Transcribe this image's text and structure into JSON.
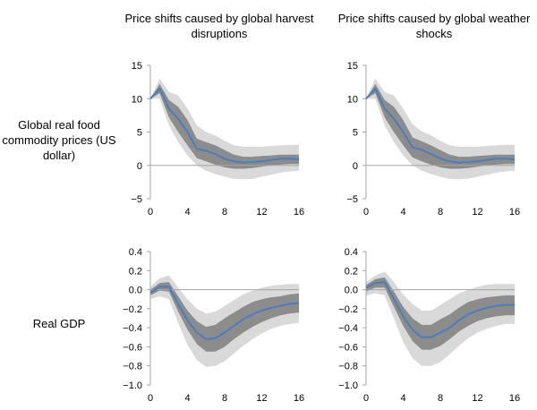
{
  "column_titles": [
    "Price shifts caused by global harvest disruptions",
    "Price shifts caused by global weather shocks"
  ],
  "row_labels": [
    "Global real food commodity prices (US dollar)",
    "Real GDP"
  ],
  "colors": {
    "line": "#4a7ebb",
    "band_outer": "#d9d9d9",
    "band_inner": "#8c8c8c",
    "zero_line": "#a6a6a6",
    "axis": "#a6a6a6"
  },
  "chart_data": [
    {
      "type": "area",
      "title": "Price shifts caused by global harvest disruptions",
      "ylabel": "Global real food commodity prices (US dollar)",
      "xlabel": "",
      "xlim": [
        0,
        16
      ],
      "ylim": [
        -5,
        15
      ],
      "xticks": [
        0,
        4,
        8,
        12,
        16
      ],
      "yticks": [
        15,
        10,
        5,
        0,
        -5
      ],
      "x": [
        0,
        1,
        2,
        3,
        4,
        5,
        6,
        7,
        8,
        9,
        10,
        11,
        12,
        13,
        14,
        15,
        16
      ],
      "series": [
        {
          "values": [
            10,
            11.5,
            8.5,
            7,
            5,
            2.5,
            2.2,
            1.7,
            1,
            0.6,
            0.4,
            0.5,
            0.6,
            0.8,
            1,
            1,
            0.9
          ]
        }
      ],
      "bands": {
        "inner_low": [
          10,
          10.8,
          7.2,
          5,
          3,
          1.1,
          0.6,
          0.1,
          -0.3,
          -0.5,
          -0.5,
          -0.4,
          -0.2,
          0,
          0.1,
          0.2,
          0.2
        ],
        "inner_high": [
          10,
          12.2,
          9.8,
          8.8,
          6.8,
          4,
          3.5,
          3,
          2.3,
          1.6,
          1.3,
          1.3,
          1.4,
          1.5,
          1.6,
          1.6,
          1.6
        ],
        "outer_low": [
          10,
          10,
          6,
          3.5,
          1.5,
          0,
          -0.8,
          -1.3,
          -1.7,
          -2,
          -2.1,
          -2,
          -1.7,
          -1.4,
          -1.1,
          -0.9,
          -0.8
        ],
        "outer_high": [
          10,
          13,
          11,
          10.5,
          8.5,
          6,
          5,
          4.5,
          3.7,
          3,
          2.8,
          2.8,
          2.8,
          2.9,
          3,
          3.1,
          3.1
        ]
      }
    },
    {
      "type": "area",
      "title": "Price shifts caused by global weather shocks",
      "ylabel": "Global real food commodity prices (US dollar)",
      "xlabel": "",
      "xlim": [
        0,
        16
      ],
      "ylim": [
        -5,
        15
      ],
      "xticks": [
        0,
        4,
        8,
        12,
        16
      ],
      "yticks": [
        15,
        10,
        5,
        0,
        -5
      ],
      "x": [
        0,
        1,
        2,
        3,
        4,
        5,
        6,
        7,
        8,
        9,
        10,
        11,
        12,
        13,
        14,
        15,
        16
      ],
      "series": [
        {
          "values": [
            10,
            11.5,
            8.5,
            7,
            5,
            2.7,
            2.3,
            1.7,
            1,
            0.6,
            0.4,
            0.5,
            0.6,
            0.8,
            1,
            1,
            0.9
          ]
        }
      ],
      "bands": {
        "inner_low": [
          10,
          10.8,
          7.2,
          5,
          3,
          1.2,
          0.6,
          0.1,
          -0.3,
          -0.5,
          -0.5,
          -0.4,
          -0.2,
          0,
          0.1,
          0.2,
          0.2
        ],
        "inner_high": [
          10,
          12.2,
          9.8,
          8.8,
          6.8,
          4.2,
          3.6,
          3,
          2.3,
          1.6,
          1.3,
          1.3,
          1.4,
          1.5,
          1.6,
          1.6,
          1.6
        ],
        "outer_low": [
          10,
          10,
          6,
          3.5,
          1.5,
          0,
          -0.8,
          -1.3,
          -1.7,
          -2,
          -2.1,
          -2,
          -1.7,
          -1.4,
          -1.1,
          -0.9,
          -0.8
        ],
        "outer_high": [
          10,
          13,
          11,
          10.5,
          8.5,
          6.2,
          5.1,
          4.5,
          3.7,
          3,
          2.8,
          2.8,
          2.8,
          2.9,
          3,
          3.1,
          3.1
        ]
      }
    },
    {
      "type": "area",
      "title": "Price shifts caused by global harvest disruptions",
      "ylabel": "Real GDP",
      "xlabel": "",
      "xlim": [
        0,
        16
      ],
      "ylim": [
        -1.0,
        0.4
      ],
      "xticks": [
        0,
        4,
        8,
        12,
        16
      ],
      "yticks": [
        0.4,
        0.2,
        0.0,
        -0.2,
        -0.4,
        -0.6,
        -0.8,
        -1.0
      ],
      "x": [
        0,
        1,
        2,
        3,
        4,
        5,
        6,
        7,
        8,
        9,
        10,
        11,
        12,
        13,
        14,
        15,
        16
      ],
      "series": [
        {
          "values": [
            -0.03,
            0.03,
            0.03,
            -0.15,
            -0.32,
            -0.45,
            -0.52,
            -0.51,
            -0.45,
            -0.38,
            -0.31,
            -0.26,
            -0.22,
            -0.19,
            -0.17,
            -0.15,
            -0.14
          ]
        }
      ],
      "bands": {
        "inner_low": [
          -0.06,
          -0.01,
          -0.02,
          -0.23,
          -0.42,
          -0.57,
          -0.65,
          -0.65,
          -0.6,
          -0.52,
          -0.45,
          -0.39,
          -0.34,
          -0.3,
          -0.27,
          -0.25,
          -0.24
        ],
        "inner_high": [
          0,
          0.07,
          0.08,
          -0.07,
          -0.22,
          -0.33,
          -0.39,
          -0.37,
          -0.3,
          -0.24,
          -0.18,
          -0.13,
          -0.1,
          -0.08,
          -0.07,
          -0.05,
          -0.04
        ],
        "outer_low": [
          -0.1,
          -0.07,
          -0.1,
          -0.35,
          -0.58,
          -0.74,
          -0.81,
          -0.8,
          -0.75,
          -0.67,
          -0.59,
          -0.52,
          -0.46,
          -0.41,
          -0.38,
          -0.36,
          -0.35
        ],
        "outer_high": [
          0.03,
          0.12,
          0.15,
          0.02,
          -0.1,
          -0.2,
          -0.25,
          -0.23,
          -0.17,
          -0.11,
          -0.05,
          -0.01,
          0.02,
          0.04,
          0.05,
          0.06,
          0.06
        ]
      }
    },
    {
      "type": "area",
      "title": "Price shifts caused by global weather shocks",
      "ylabel": "Real GDP",
      "xlabel": "",
      "xlim": [
        0,
        16
      ],
      "ylim": [
        -1.0,
        0.4
      ],
      "xticks": [
        0,
        4,
        8,
        12,
        16
      ],
      "yticks": [
        0.4,
        0.2,
        0.0,
        -0.2,
        -0.4,
        -0.6,
        -0.8,
        -1.0
      ],
      "x": [
        0,
        1,
        2,
        3,
        4,
        5,
        6,
        7,
        8,
        9,
        10,
        11,
        12,
        13,
        14,
        15,
        16
      ],
      "series": [
        {
          "values": [
            0.02,
            0.07,
            0.08,
            -0.1,
            -0.28,
            -0.42,
            -0.5,
            -0.5,
            -0.45,
            -0.4,
            -0.32,
            -0.26,
            -0.22,
            -0.19,
            -0.17,
            -0.16,
            -0.16
          ]
        }
      ],
      "bands": {
        "inner_low": [
          -0.02,
          0.02,
          0.02,
          -0.18,
          -0.38,
          -0.54,
          -0.63,
          -0.63,
          -0.59,
          -0.52,
          -0.44,
          -0.38,
          -0.33,
          -0.3,
          -0.28,
          -0.27,
          -0.27
        ],
        "inner_high": [
          0.05,
          0.11,
          0.13,
          -0.02,
          -0.18,
          -0.3,
          -0.37,
          -0.37,
          -0.31,
          -0.26,
          -0.19,
          -0.13,
          -0.1,
          -0.08,
          -0.07,
          -0.06,
          -0.06
        ],
        "outer_low": [
          -0.06,
          -0.04,
          -0.06,
          -0.3,
          -0.55,
          -0.72,
          -0.8,
          -0.8,
          -0.76,
          -0.68,
          -0.59,
          -0.51,
          -0.45,
          -0.41,
          -0.38,
          -0.36,
          -0.36
        ],
        "outer_high": [
          0.08,
          0.15,
          0.19,
          0.08,
          -0.05,
          -0.15,
          -0.22,
          -0.22,
          -0.16,
          -0.1,
          -0.04,
          0,
          0.03,
          0.05,
          0.06,
          0.06,
          0.06
        ]
      }
    }
  ]
}
